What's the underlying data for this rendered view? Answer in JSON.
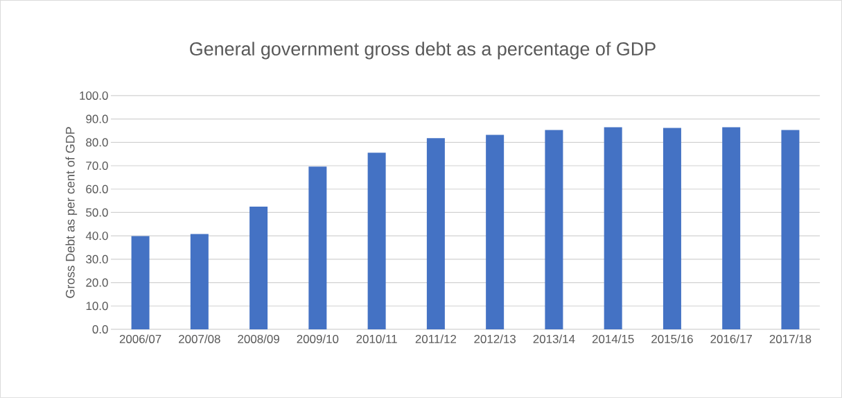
{
  "chart_data": {
    "type": "bar",
    "title": "General government gross debt as a percentage of GDP",
    "ylabel": "Gross Debt as per cent of GDP",
    "categories": [
      "2006/07",
      "2007/08",
      "2008/09",
      "2009/10",
      "2010/11",
      "2011/12",
      "2012/13",
      "2013/14",
      "2014/15",
      "2015/16",
      "2016/17",
      "2017/18"
    ],
    "values": [
      39.9,
      40.8,
      52.5,
      69.6,
      75.6,
      81.8,
      83.2,
      85.3,
      86.5,
      86.2,
      86.5,
      85.3
    ],
    "color": "#4472c4",
    "ylim": [
      0,
      100
    ],
    "yticks": [
      {
        "value": 0,
        "label": "0.0"
      },
      {
        "value": 10,
        "label": "10.0"
      },
      {
        "value": 20,
        "label": "20.0"
      },
      {
        "value": 30,
        "label": "30.0"
      },
      {
        "value": 40,
        "label": "40.0"
      },
      {
        "value": 50,
        "label": "50.0"
      },
      {
        "value": 60,
        "label": "60.0"
      },
      {
        "value": 70,
        "label": "70.0"
      },
      {
        "value": 80,
        "label": "80.0"
      },
      {
        "value": 90,
        "label": "90.0"
      },
      {
        "value": 100,
        "label": "100.0"
      }
    ],
    "grid": "y"
  }
}
